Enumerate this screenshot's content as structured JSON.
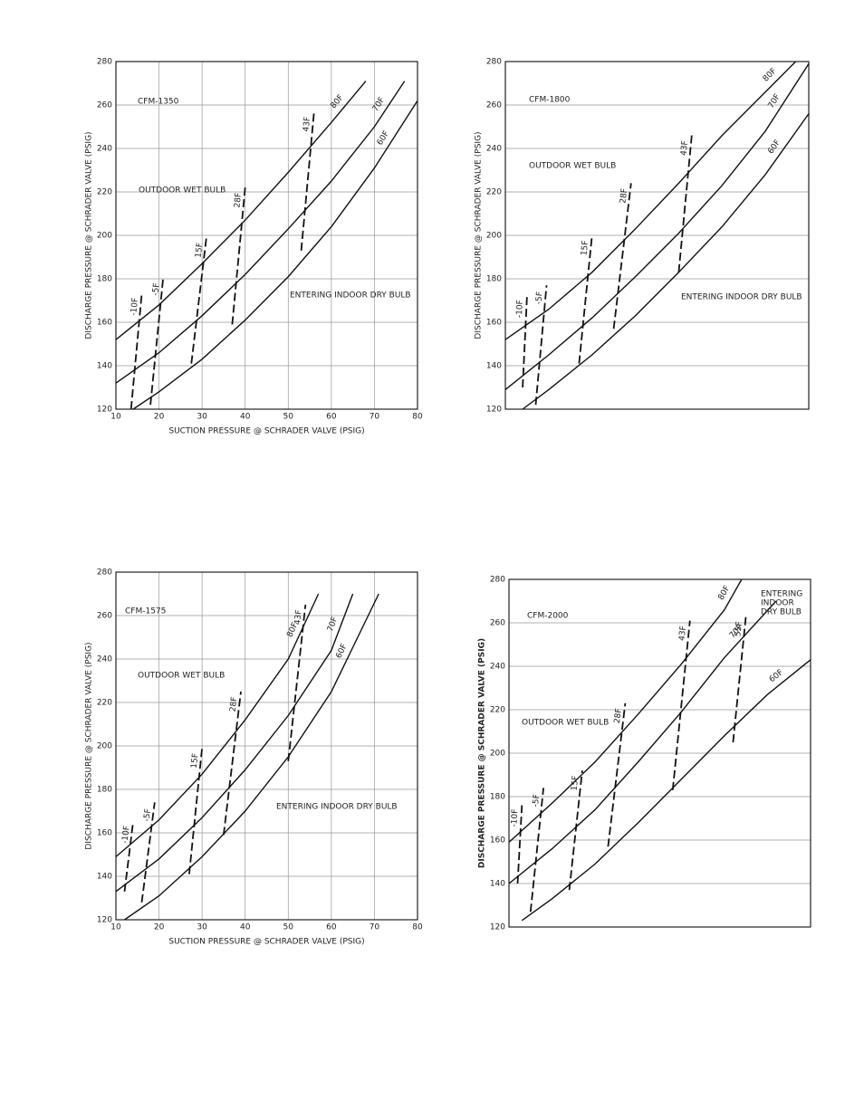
{
  "chart_data": [
    {
      "type": "line",
      "ylabel": "DISCHARGE PRESSURE @ SCHRADER VALVE (PSIG)",
      "xlabel": "SUCTION PRESSURE @ SCHRADER VALVE (PSIG)",
      "annotations": [
        "CFM-1350",
        "OUTDOOR WET BULB",
        "ENTERING INDOOR DRY BULB"
      ],
      "xlim": [
        10,
        80
      ],
      "ylim": [
        120,
        280
      ],
      "xticks": [
        10,
        20,
        30,
        40,
        50,
        60,
        70,
        80
      ],
      "yticks": [
        120,
        140,
        160,
        180,
        200,
        220,
        240,
        260,
        280
      ],
      "grid": true,
      "series": [
        {
          "name": "80F",
          "color": "#111111",
          "style": "solid",
          "x": [
            10,
            20,
            30,
            40,
            50,
            60,
            68
          ],
          "values": [
            152,
            168,
            187,
            207,
            229,
            252,
            271
          ]
        },
        {
          "name": "70F",
          "color": "#111111",
          "style": "solid",
          "x": [
            10,
            20,
            30,
            40,
            50,
            60,
            70,
            77
          ],
          "values": [
            132,
            146,
            163,
            182,
            203,
            225,
            250,
            271
          ]
        },
        {
          "name": "60F",
          "color": "#111111",
          "style": "solid",
          "x": [
            14,
            20,
            30,
            40,
            50,
            60,
            70,
            80
          ],
          "values": [
            120,
            128,
            143,
            161,
            181,
            204,
            231,
            262
          ]
        },
        {
          "name": "-10F",
          "color": "#111111",
          "style": "dashed",
          "x": [
            13.5,
            16
          ],
          "values": [
            120,
            173
          ]
        },
        {
          "name": "-5F",
          "color": "#111111",
          "style": "dashed",
          "x": [
            18,
            21
          ],
          "values": [
            122,
            181
          ]
        },
        {
          "name": "15F",
          "color": "#111111",
          "style": "dashed",
          "x": [
            27.5,
            31
          ],
          "values": [
            141,
            199
          ]
        },
        {
          "name": "28F",
          "color": "#111111",
          "style": "dashed",
          "x": [
            37,
            40
          ],
          "values": [
            159,
            222
          ]
        },
        {
          "name": "43F",
          "color": "#111111",
          "style": "dashed",
          "x": [
            53,
            56
          ],
          "values": [
            193,
            257
          ]
        }
      ]
    },
    {
      "type": "line",
      "ylabel": "DISCHARGE PRESSURE @ SCHRADER VALVE (PSIG)",
      "annotations": [
        "CFM-1800",
        "OUTDOOR WET BULB",
        "ENTERING INDOOR DRY BULB"
      ],
      "xlim": [
        10,
        80
      ],
      "ylim": [
        120,
        280
      ],
      "yticks": [
        120,
        140,
        160,
        180,
        200,
        220,
        240,
        260,
        280
      ],
      "grid": true,
      "series": [
        {
          "name": "80F",
          "color": "#111111",
          "style": "solid",
          "x": [
            10,
            20,
            30,
            40,
            50,
            60,
            70,
            77
          ],
          "values": [
            152,
            166,
            183,
            203,
            224,
            246,
            266,
            280
          ]
        },
        {
          "name": "70F",
          "color": "#111111",
          "style": "solid",
          "x": [
            10,
            20,
            30,
            40,
            50,
            60,
            70,
            80
          ],
          "values": [
            129,
            145,
            162,
            181,
            201,
            223,
            248,
            279
          ]
        },
        {
          "name": "60F",
          "color": "#111111",
          "style": "solid",
          "x": [
            14,
            20,
            30,
            40,
            50,
            60,
            70,
            80
          ],
          "values": [
            120,
            129,
            145,
            163,
            183,
            204,
            228,
            256
          ]
        },
        {
          "name": "-10F",
          "color": "#111111",
          "style": "dashed",
          "x": [
            14,
            15
          ],
          "values": [
            130,
            172
          ]
        },
        {
          "name": "-5F",
          "color": "#111111",
          "style": "dashed",
          "x": [
            17,
            19.5
          ],
          "values": [
            122,
            177
          ]
        },
        {
          "name": "15F",
          "color": "#111111",
          "style": "dashed",
          "x": [
            27,
            30
          ],
          "values": [
            141,
            200
          ]
        },
        {
          "name": "28F",
          "color": "#111111",
          "style": "dashed",
          "x": [
            35,
            39
          ],
          "values": [
            157,
            224
          ]
        },
        {
          "name": "43F",
          "color": "#111111",
          "style": "dashed",
          "x": [
            50,
            53
          ],
          "values": [
            183,
            246
          ]
        }
      ]
    },
    {
      "type": "line",
      "ylabel": "DISCHARGE PRESSURE @ SCHRADER VALVE (PSIG)",
      "xlabel": "SUCTION PRESSURE @ SCHRADER VALVE (PSIG)",
      "annotations": [
        "CFM-1575",
        "OUTDOOR WET BULB",
        "ENTERING INDOOR DRY BULB"
      ],
      "xlim": [
        10,
        80
      ],
      "ylim": [
        120,
        280
      ],
      "xticks": [
        10,
        20,
        30,
        40,
        50,
        60,
        70,
        80
      ],
      "yticks": [
        120,
        140,
        160,
        180,
        200,
        220,
        240,
        260,
        280
      ],
      "grid": true,
      "series": [
        {
          "name": "80F",
          "color": "#111111",
          "style": "solid",
          "x": [
            10,
            20,
            30,
            40,
            50,
            57
          ],
          "values": [
            149,
            166,
            187,
            212,
            240,
            270
          ]
        },
        {
          "name": "70F",
          "color": "#111111",
          "style": "solid",
          "x": [
            10,
            20,
            30,
            40,
            50,
            60,
            65
          ],
          "values": [
            133,
            148,
            167,
            189,
            214,
            244,
            270
          ]
        },
        {
          "name": "60F",
          "color": "#111111",
          "style": "solid",
          "x": [
            12,
            20,
            30,
            40,
            50,
            60,
            71
          ],
          "values": [
            120,
            131,
            149,
            170,
            195,
            225,
            270
          ]
        },
        {
          "name": "-10F",
          "color": "#111111",
          "style": "dashed",
          "x": [
            12,
            14
          ],
          "values": [
            133,
            165
          ]
        },
        {
          "name": "-5F",
          "color": "#111111",
          "style": "dashed",
          "x": [
            16,
            19
          ],
          "values": [
            128,
            174
          ]
        },
        {
          "name": "15F",
          "color": "#111111",
          "style": "dashed",
          "x": [
            27,
            30
          ],
          "values": [
            141,
            199
          ]
        },
        {
          "name": "28F",
          "color": "#111111",
          "style": "dashed",
          "x": [
            35,
            39
          ],
          "values": [
            159,
            225
          ]
        },
        {
          "name": "43F",
          "color": "#111111",
          "style": "dashed",
          "x": [
            50,
            54
          ],
          "values": [
            193,
            265
          ]
        }
      ]
    },
    {
      "type": "line",
      "ylabel": "DISCHARGE PRESSURE @ SCHRADER VALVE (PSIG)",
      "annotations": [
        "CFM-2000",
        "OUTDOOR WET BULB",
        "ENTERING",
        "INDOOR",
        "DRY BULB"
      ],
      "xlim": [
        10,
        80
      ],
      "ylim": [
        120,
        280
      ],
      "yticks": [
        120,
        140,
        160,
        180,
        200,
        220,
        240,
        260,
        280
      ],
      "grid": true,
      "series": [
        {
          "name": "80F",
          "color": "#111111",
          "style": "solid",
          "x": [
            10,
            20,
            30,
            40,
            50,
            60,
            64
          ],
          "values": [
            159,
            177,
            196,
            218,
            241,
            266,
            280
          ]
        },
        {
          "name": "70F",
          "color": "#111111",
          "style": "solid",
          "x": [
            10,
            20,
            30,
            40,
            50,
            60,
            72
          ],
          "values": [
            140,
            156,
            174,
            196,
            219,
            244,
            270
          ]
        },
        {
          "name": "60F",
          "color": "#111111",
          "style": "solid",
          "x": [
            13,
            20,
            30,
            40,
            50,
            60,
            70,
            80
          ],
          "values": [
            123,
            133,
            149,
            168,
            188,
            208,
            227,
            243
          ]
        },
        {
          "name": "-10F",
          "color": "#111111",
          "style": "dashed",
          "x": [
            12,
            13
          ],
          "values": [
            140,
            176
          ]
        },
        {
          "name": "-5F",
          "color": "#111111",
          "style": "dashed",
          "x": [
            15,
            18
          ],
          "values": [
            127,
            184
          ]
        },
        {
          "name": "15F",
          "color": "#111111",
          "style": "dashed",
          "x": [
            24,
            27
          ],
          "values": [
            137,
            192
          ]
        },
        {
          "name": "28F",
          "color": "#111111",
          "style": "dashed",
          "x": [
            33,
            37
          ],
          "values": [
            157,
            223
          ]
        },
        {
          "name": "43F",
          "color": "#111111",
          "style": "dashed",
          "x": [
            48,
            52
          ],
          "values": [
            183,
            261
          ]
        },
        {
          "name": "55F",
          "color": "#111111",
          "style": "dashed",
          "x": [
            62,
            65
          ],
          "values": [
            205,
            263
          ]
        }
      ]
    }
  ]
}
